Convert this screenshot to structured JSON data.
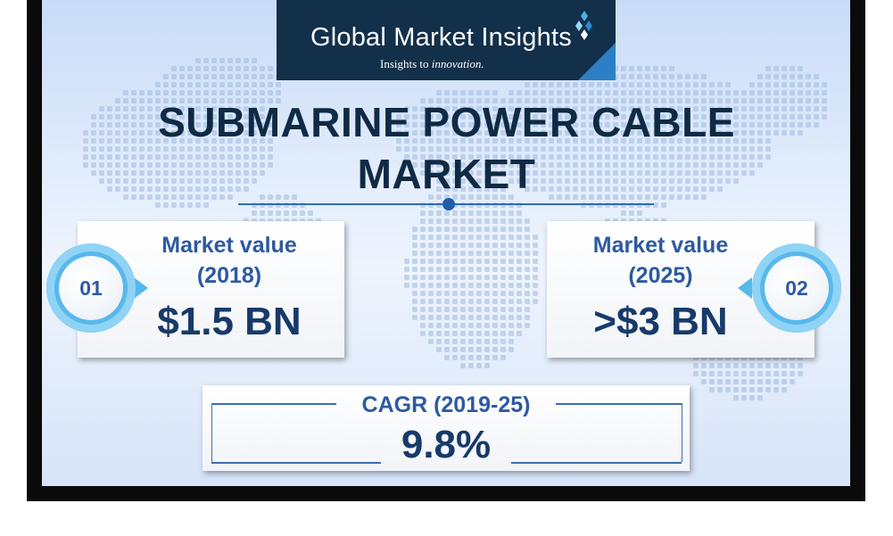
{
  "logo": {
    "brand": "Global Market Insights",
    "tagline_prefix": "Insights to ",
    "tagline_emphasis": "innovation."
  },
  "title": {
    "line1": "SUBMARINE POWER CABLE",
    "line2": "MARKET"
  },
  "cards": [
    {
      "badge": "01",
      "label_line1": "Market value",
      "label_line2": "(2018)",
      "value": "$1.5 BN"
    },
    {
      "badge": "02",
      "label_line1": "Market value",
      "label_line2": "(2025)",
      "value": ">$3 BN"
    }
  ],
  "cagr": {
    "label": "CAGR (2019-25)",
    "value": "9.8%"
  },
  "colors": {
    "brand_navy": "#12304a",
    "title_navy": "#0f2a44",
    "label_blue": "#2d5aa0",
    "badge_blue": "#57b8ec"
  }
}
